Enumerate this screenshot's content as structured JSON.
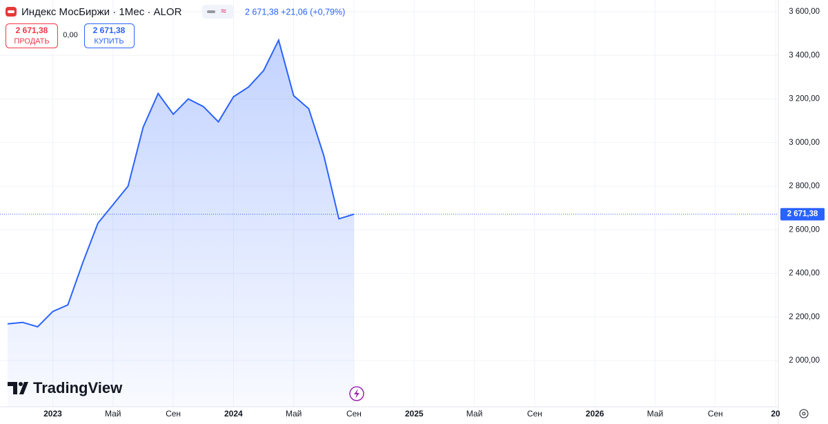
{
  "header": {
    "title": "Индекс МосБиржи · 1Мес · ALOR",
    "quote": "2 671,38 +21,06 (+0,79%)",
    "sell_price": "2 671,38",
    "sell_label": "ПРОДАТЬ",
    "spread": "0,00",
    "buy_price": "2 671,38",
    "buy_label": "КУПИТЬ",
    "brand": "TradingView"
  },
  "chart_data": {
    "type": "area",
    "x": [
      "2022-10",
      "2022-11",
      "2022-12",
      "2023-01",
      "2023-02",
      "2023-03",
      "2023-04",
      "2023-05",
      "2023-06",
      "2023-07",
      "2023-08",
      "2023-09",
      "2023-10",
      "2023-11",
      "2023-12",
      "2024-01",
      "2024-02",
      "2024-03",
      "2024-04",
      "2024-05",
      "2024-06",
      "2024-07",
      "2024-08",
      "2024-09"
    ],
    "values": [
      2168,
      2175,
      2155,
      2225,
      2255,
      2450,
      2630,
      2715,
      2800,
      3070,
      3225,
      3130,
      3200,
      3165,
      3095,
      3210,
      3255,
      3330,
      3470,
      3215,
      3155,
      2940,
      2650,
      2671.38
    ],
    "color": "#2962ff",
    "price_line": {
      "value": 2671.38,
      "label": "2 671,38"
    },
    "xlim": [
      "2022-10",
      "2027-01"
    ],
    "xticks": [
      {
        "value": "2023-01",
        "label": "2023"
      },
      {
        "value": "2023-05",
        "label": "Май"
      },
      {
        "value": "2023-09",
        "label": "Сен"
      },
      {
        "value": "2024-01",
        "label": "2024"
      },
      {
        "value": "2024-05",
        "label": "Май"
      },
      {
        "value": "2024-09",
        "label": "Сен"
      },
      {
        "value": "2025-01",
        "label": "2025"
      },
      {
        "value": "2025-05",
        "label": "Май"
      },
      {
        "value": "2025-09",
        "label": "Сен"
      },
      {
        "value": "2026-01",
        "label": "2026"
      },
      {
        "value": "2026-05",
        "label": "Май"
      },
      {
        "value": "2026-09",
        "label": "Сен"
      },
      {
        "value": "2027-01",
        "label": "20"
      }
    ],
    "ylim": [
      1788,
      3654
    ],
    "yticks": [
      {
        "value": 2000,
        "label": "2 000,00"
      },
      {
        "value": 2200,
        "label": "2 200,00"
      },
      {
        "value": 2400,
        "label": "2 400,00"
      },
      {
        "value": 2600,
        "label": "2 600,00"
      },
      {
        "value": 2800,
        "label": "2 800,00"
      },
      {
        "value": 3000,
        "label": "3 000,00"
      },
      {
        "value": 3200,
        "label": "3 200,00"
      },
      {
        "value": 3400,
        "label": "3 400,00"
      },
      {
        "value": 3600,
        "label": "3 600,00"
      }
    ],
    "grid": true
  }
}
